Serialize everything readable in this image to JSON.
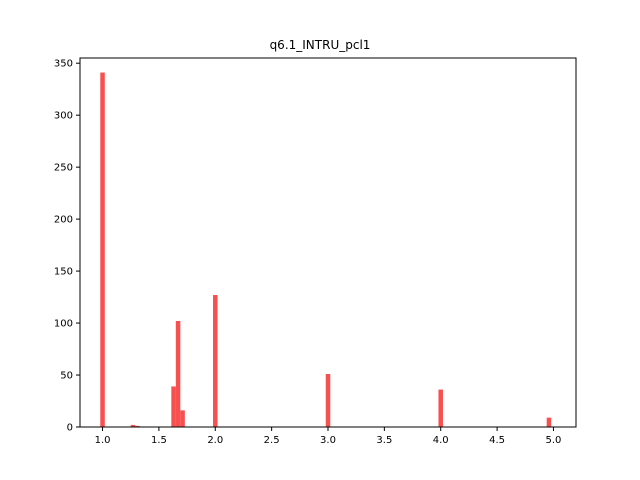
{
  "chart_data": {
    "type": "bar",
    "title": "q6.1_INTRU_pcl1",
    "xlabel": "",
    "ylabel": "",
    "xlim": [
      0.8,
      5.2
    ],
    "ylim": [
      0,
      355
    ],
    "bin_width": 0.04,
    "bar_color": "#f84f4f",
    "grid": false,
    "x_ticks": [
      "1.0",
      "1.5",
      "2.0",
      "2.5",
      "3.0",
      "3.5",
      "4.0",
      "4.5",
      "5.0"
    ],
    "y_ticks": [
      "0",
      "50",
      "100",
      "150",
      "200",
      "250",
      "300",
      "350"
    ],
    "bins": [
      {
        "x": 1.0,
        "value": 341
      },
      {
        "x": 1.27,
        "value": 2
      },
      {
        "x": 1.31,
        "value": 1
      },
      {
        "x": 1.63,
        "value": 39
      },
      {
        "x": 1.67,
        "value": 102
      },
      {
        "x": 1.71,
        "value": 16
      },
      {
        "x": 2.0,
        "value": 127
      },
      {
        "x": 3.0,
        "value": 51
      },
      {
        "x": 4.0,
        "value": 36
      },
      {
        "x": 4.96,
        "value": 9
      }
    ]
  }
}
